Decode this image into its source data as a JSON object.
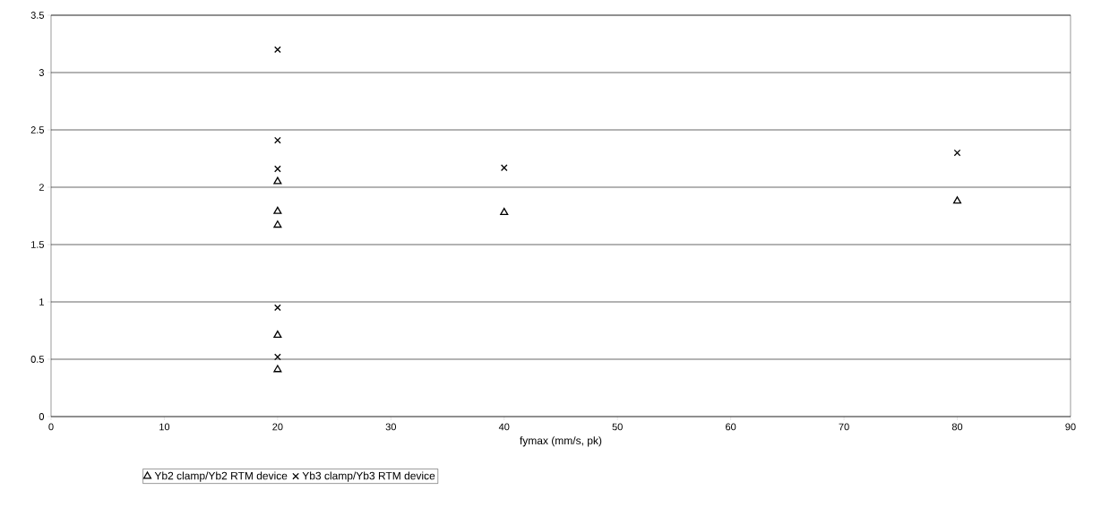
{
  "chart_data": {
    "type": "scatter",
    "xlabel": "fymax (mm/s, pk)",
    "xlim": [
      0,
      90
    ],
    "xticks": [
      0,
      10,
      20,
      30,
      40,
      50,
      60,
      70,
      80,
      90
    ],
    "ylim": [
      0,
      3.5
    ],
    "yticks": [
      0,
      0.5,
      1,
      1.5,
      2,
      2.5,
      3,
      3.5
    ],
    "grid": "y",
    "legend": "bottom",
    "series": [
      {
        "name": "Yb2 clamp/Yb2 RTM device",
        "color": "#000000",
        "marker": "triangle",
        "x": [
          20,
          20,
          20,
          20,
          20,
          40,
          80
        ],
        "values": [
          2.05,
          1.79,
          1.67,
          0.71,
          0.41,
          1.78,
          1.88
        ]
      },
      {
        "name": "Yb3 clamp/Yb3 RTM device",
        "color": "#000000",
        "marker": "cross",
        "x": [
          20,
          20,
          20,
          20,
          20,
          40,
          80
        ],
        "values": [
          3.2,
          2.41,
          2.16,
          0.95,
          0.52,
          2.17,
          2.3
        ]
      }
    ]
  }
}
